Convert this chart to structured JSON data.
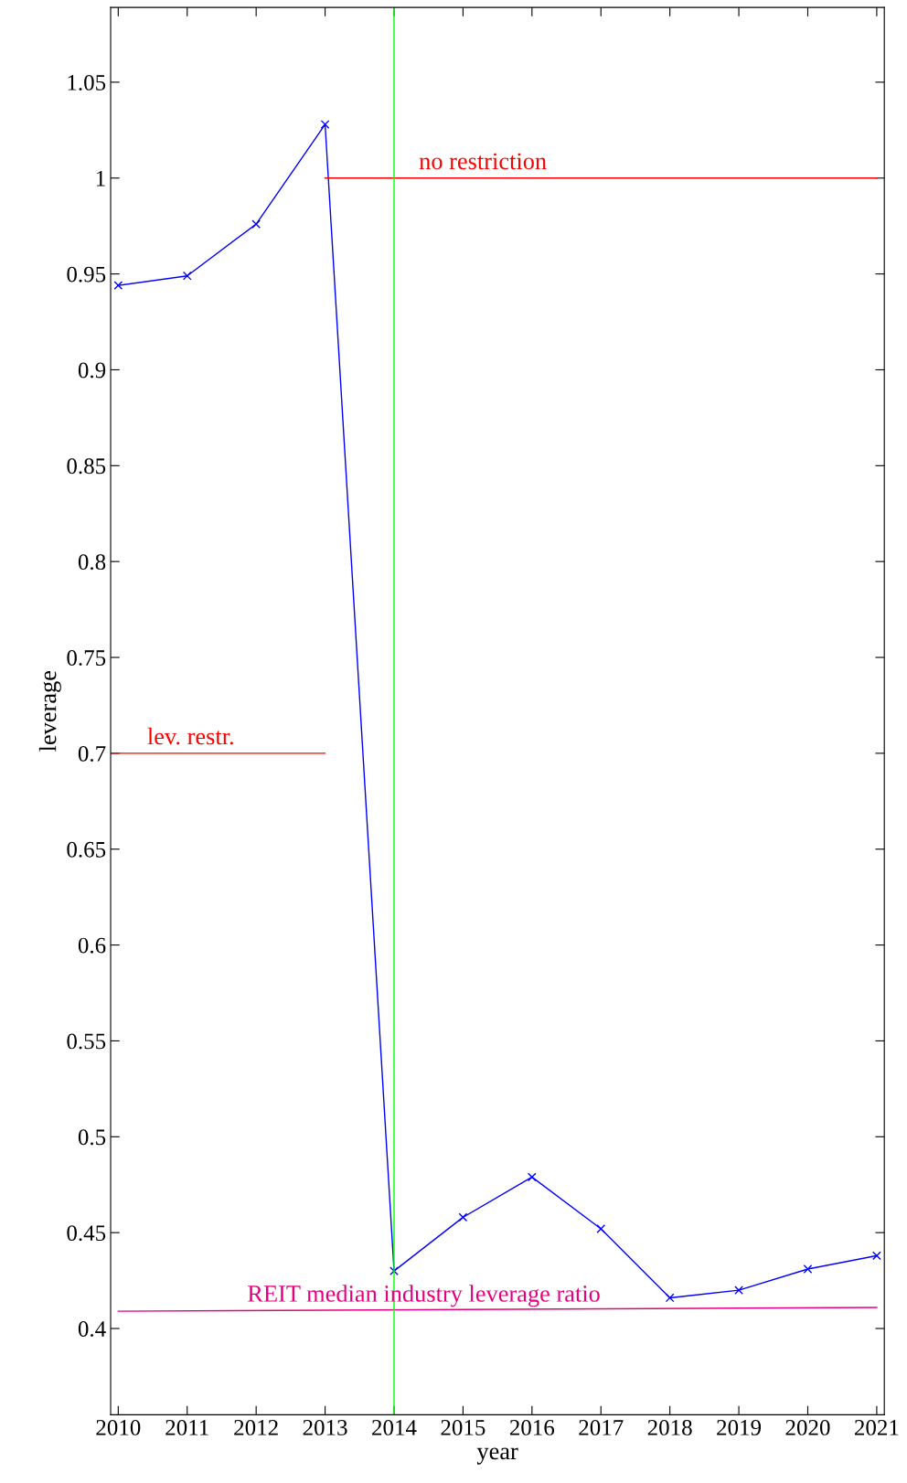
{
  "chart_data": {
    "type": "line",
    "xlabel": "year",
    "ylabel": "leverage",
    "x": [
      2010,
      2011,
      2012,
      2013,
      2014,
      2015,
      2016,
      2017,
      2018,
      2019,
      2020,
      2021
    ],
    "series": [
      {
        "color": "#0000ff",
        "marker": "cross",
        "values": [
          0.944,
          0.949,
          0.976,
          1.028,
          0.43,
          0.458,
          0.479,
          0.452,
          0.416,
          0.42,
          0.431,
          0.438
        ]
      },
      {
        "name": "lev. restr.",
        "color": "#ff0000",
        "marker": "none",
        "x": [
          2009.89,
          2013
        ],
        "values": [
          0.7,
          0.7
        ]
      },
      {
        "name": "no restriction",
        "color": "#ff0000",
        "marker": "none",
        "x": [
          2013,
          2021
        ],
        "values": [
          1.0,
          1.0
        ]
      },
      {
        "name": "REIT median industry leverage ratio",
        "color": "#e6007e",
        "marker": "none",
        "x": [
          2010,
          2021
        ],
        "values": [
          0.409,
          0.411
        ]
      }
    ],
    "ref_lines": [
      {
        "axis": "x",
        "value": 2014,
        "color": "#00ff00"
      }
    ],
    "xlim": [
      2009.89,
      2021.11
    ],
    "ylim": [
      0.355,
      1.089
    ],
    "xticks": [
      2010,
      2011,
      2012,
      2013,
      2014,
      2015,
      2016,
      2017,
      2018,
      2019,
      2020,
      2021
    ],
    "yticks": [
      0.4,
      0.45,
      0.5,
      0.55,
      0.6,
      0.65,
      0.7,
      0.75,
      0.8,
      0.85,
      0.9,
      0.95,
      1,
      1.05
    ],
    "grid": false,
    "legend": false
  }
}
